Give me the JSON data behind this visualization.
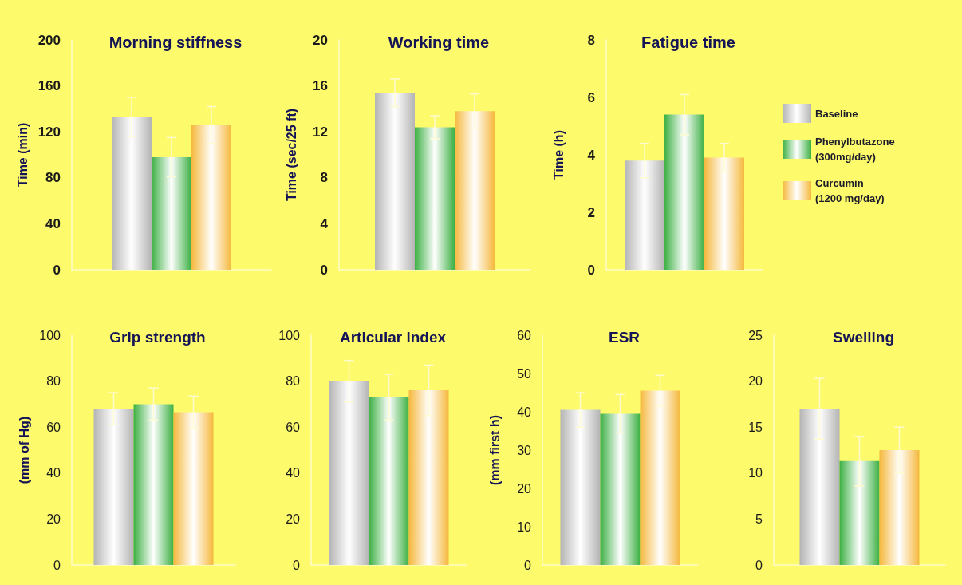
{
  "chart_data": [
    {
      "type": "bar",
      "title": "Morning stiffness",
      "ylabel": "Time (min)",
      "categories": [
        null
      ],
      "ylim": [
        0,
        200
      ],
      "yticks": [
        0,
        40,
        80,
        120,
        160,
        200
      ],
      "grid": false,
      "series": [
        {
          "color": "#b4b4b4",
          "values": [
            133
          ],
          "errors": [
            17
          ]
        },
        {
          "color": "#3cb043",
          "values": [
            98
          ],
          "errors": [
            17
          ]
        },
        {
          "color": "#f5b83c",
          "values": [
            126
          ],
          "errors": [
            16
          ]
        }
      ]
    },
    {
      "type": "bar",
      "title": "Working time",
      "ylabel": "Time (sec/25 ft)",
      "categories": [
        null
      ],
      "ylim": [
        0,
        20
      ],
      "yticks": [
        0,
        4,
        8,
        12,
        16,
        20
      ],
      "grid": false,
      "series": [
        {
          "color": "#b4b4b4",
          "values": [
            15.4
          ],
          "errors": [
            1.2
          ]
        },
        {
          "color": "#3cb043",
          "values": [
            12.4
          ],
          "errors": [
            1
          ]
        },
        {
          "color": "#f5b83c",
          "values": [
            13.8
          ],
          "errors": [
            1.5
          ]
        }
      ]
    },
    {
      "type": "bar",
      "title": "Fatigue time",
      "ylabel": "Time (h)",
      "categories": [
        null
      ],
      "ylim": [
        0,
        8
      ],
      "yticks": [
        0,
        2,
        4,
        6,
        8
      ],
      "grid": false,
      "legend": "right",
      "series": [
        {
          "name": "Baseline",
          "color": "#b4b4b4",
          "values": [
            3.8
          ],
          "errors": [
            0.6
          ]
        },
        {
          "name": "Phenylbutazone (300mg/day)",
          "color": "#3cb043",
          "values": [
            5.4
          ],
          "errors": [
            0.7
          ]
        },
        {
          "name": "Curcumin (1200 mg/day)",
          "color": "#f5b83c",
          "values": [
            3.9
          ],
          "errors": [
            0.5
          ]
        }
      ]
    },
    {
      "type": "bar",
      "title": "Grip strength",
      "ylabel": "(mm of Hg)",
      "categories": [
        null
      ],
      "ylim": [
        0,
        100
      ],
      "yticks": [
        0,
        20,
        40,
        60,
        80,
        100
      ],
      "grid": false,
      "series": [
        {
          "color": "#b4b4b4",
          "values": [
            68
          ],
          "errors": [
            7
          ]
        },
        {
          "color": "#3cb043",
          "values": [
            70
          ],
          "errors": [
            7
          ]
        },
        {
          "color": "#f5b83c",
          "values": [
            66.5
          ],
          "errors": [
            7
          ]
        }
      ]
    },
    {
      "type": "bar",
      "title": "Articular index",
      "categories": [
        null
      ],
      "ylim": [
        0,
        100
      ],
      "yticks": [
        0,
        20,
        40,
        60,
        80,
        100
      ],
      "grid": false,
      "series": [
        {
          "color": "#b4b4b4",
          "values": [
            80
          ],
          "errors": [
            9
          ]
        },
        {
          "color": "#3cb043",
          "values": [
            73
          ],
          "errors": [
            10
          ]
        },
        {
          "color": "#f5b83c",
          "values": [
            76
          ],
          "errors": [
            11
          ]
        }
      ]
    },
    {
      "type": "bar",
      "title": "ESR",
      "ylabel": "(mm first h)",
      "categories": [
        null
      ],
      "ylim": [
        0,
        60
      ],
      "yticks": [
        0,
        10,
        20,
        30,
        40,
        50,
        60
      ],
      "grid": false,
      "series": [
        {
          "color": "#b4b4b4",
          "values": [
            40.5
          ],
          "errors": [
            4.5
          ]
        },
        {
          "color": "#3cb043",
          "values": [
            39.5
          ],
          "errors": [
            5
          ]
        },
        {
          "color": "#f5b83c",
          "values": [
            45.5
          ],
          "errors": [
            4
          ]
        }
      ]
    },
    {
      "type": "bar",
      "title": "Swelling",
      "categories": [
        null
      ],
      "ylim": [
        0,
        25
      ],
      "yticks": [
        0,
        5,
        10,
        15,
        20,
        25
      ],
      "grid": false,
      "series": [
        {
          "color": "#b4b4b4",
          "values": [
            17
          ],
          "errors": [
            3.3
          ]
        },
        {
          "color": "#3cb043",
          "values": [
            11.3
          ],
          "errors": [
            2.7
          ]
        },
        {
          "color": "#f5b83c",
          "values": [
            12.5
          ],
          "errors": [
            2.5
          ]
        }
      ]
    }
  ]
}
